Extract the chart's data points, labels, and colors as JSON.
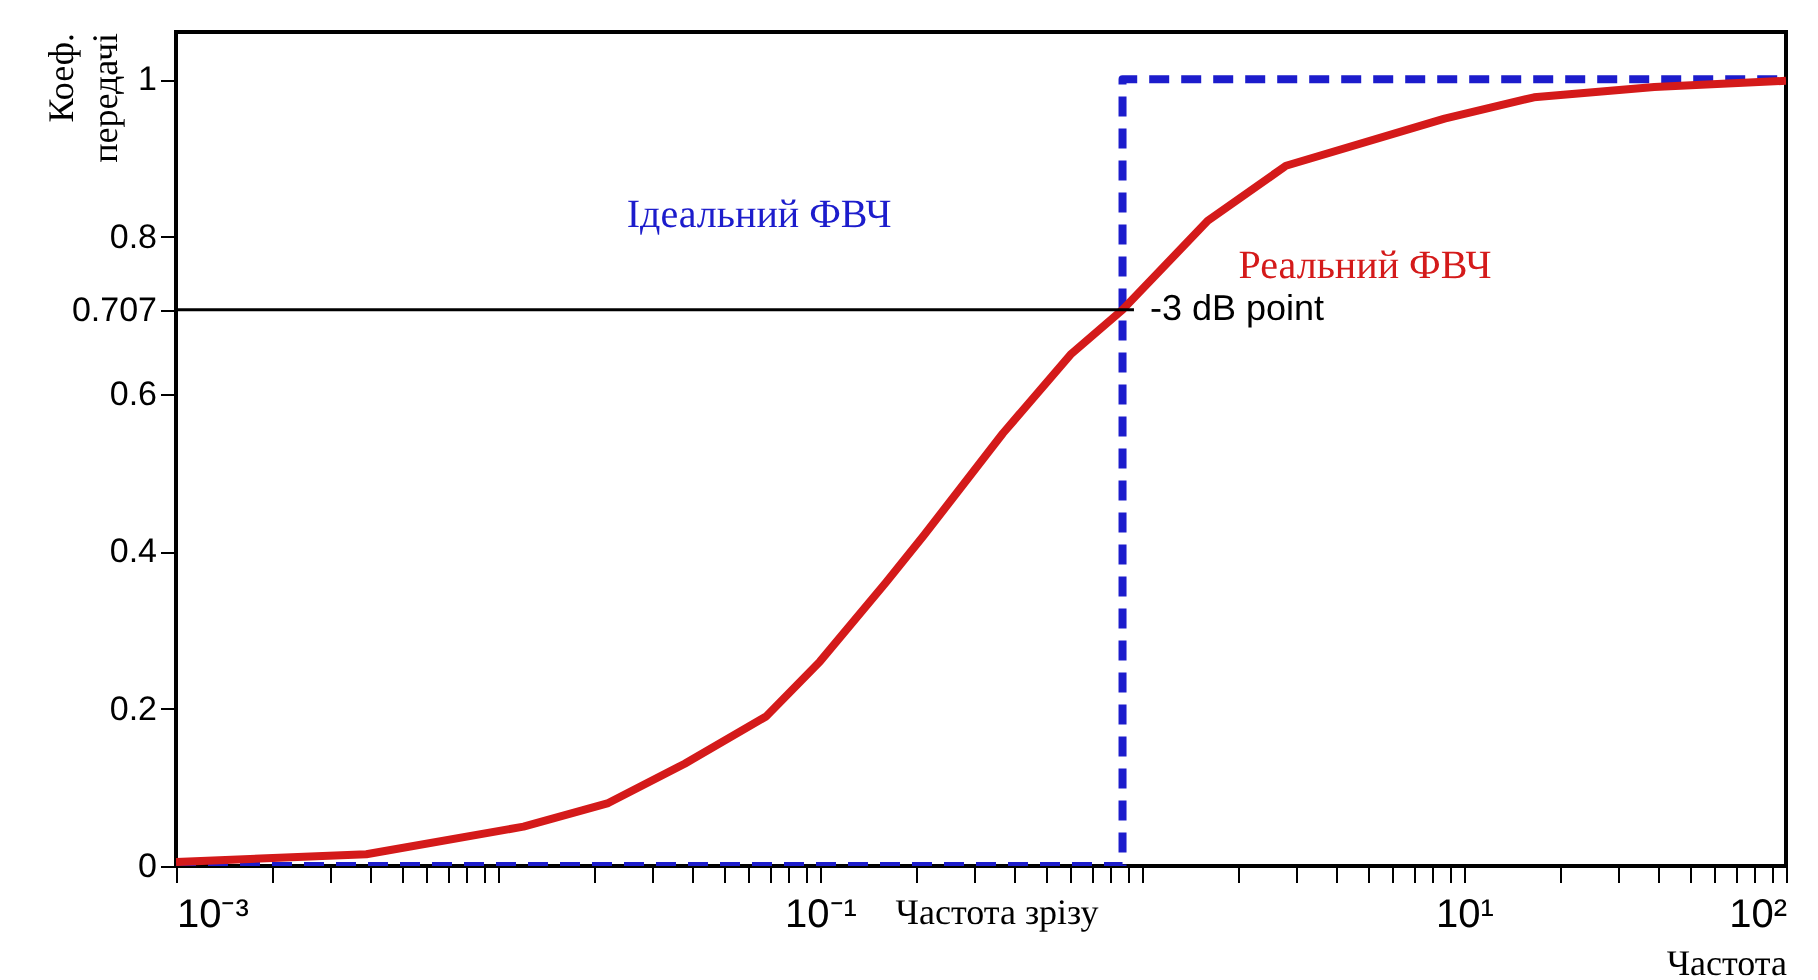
{
  "chart_data": {
    "type": "line",
    "xlabel": "Частота",
    "ylabel": "Коеф. передачі",
    "log": "x",
    "xlim": [
      0.001,
      100
    ],
    "ylim": [
      0,
      1.06
    ],
    "xticks": [
      {
        "value": 0.001,
        "label": "10⁻³"
      },
      {
        "value": 0.002,
        "label": null
      },
      {
        "value": 0.003,
        "label": null
      },
      {
        "value": 0.004,
        "label": null
      },
      {
        "value": 0.005,
        "label": null
      },
      {
        "value": 0.006,
        "label": null
      },
      {
        "value": 0.007,
        "label": null
      },
      {
        "value": 0.008,
        "label": null
      },
      {
        "value": 0.009,
        "label": null
      },
      {
        "value": 0.01,
        "label": null
      },
      {
        "value": 0.02,
        "label": null
      },
      {
        "value": 0.03,
        "label": null
      },
      {
        "value": 0.04,
        "label": null
      },
      {
        "value": 0.05,
        "label": null
      },
      {
        "value": 0.06,
        "label": null
      },
      {
        "value": 0.07,
        "label": null
      },
      {
        "value": 0.08,
        "label": null
      },
      {
        "value": 0.09,
        "label": null
      },
      {
        "value": 0.1,
        "label": "10⁻¹"
      },
      {
        "value": 0.2,
        "label": null
      },
      {
        "value": 0.3,
        "label": null
      },
      {
        "value": 0.4,
        "label": null
      },
      {
        "value": 0.5,
        "label": null
      },
      {
        "value": 0.6,
        "label": null
      },
      {
        "value": 0.7,
        "label": null
      },
      {
        "value": 0.8,
        "label": null
      },
      {
        "value": 0.9,
        "label": null
      },
      {
        "value": 1,
        "label": null
      },
      {
        "value": 2,
        "label": null
      },
      {
        "value": 3,
        "label": null
      },
      {
        "value": 4,
        "label": null
      },
      {
        "value": 5,
        "label": null
      },
      {
        "value": 6,
        "label": null
      },
      {
        "value": 7,
        "label": null
      },
      {
        "value": 8,
        "label": null
      },
      {
        "value": 9,
        "label": null
      },
      {
        "value": 10,
        "label": "10¹"
      },
      {
        "value": 20,
        "label": null
      },
      {
        "value": 30,
        "label": null
      },
      {
        "value": 40,
        "label": null
      },
      {
        "value": 50,
        "label": null
      },
      {
        "value": 60,
        "label": null
      },
      {
        "value": 70,
        "label": null
      },
      {
        "value": 80,
        "label": null
      },
      {
        "value": 90,
        "label": null
      },
      {
        "value": 100,
        "label": "10²"
      }
    ],
    "yticks": [
      0,
      0.2,
      0.4,
      0.6,
      0.707,
      0.8,
      1
    ],
    "grid": false,
    "series": [
      {
        "name": "Ідеальний ФВЧ",
        "color": "#1c1ccc",
        "line_style": "dashed",
        "x": [
          0.001,
          0.87,
          0.87,
          100
        ],
        "values": [
          0,
          0,
          1,
          1
        ]
      },
      {
        "name": "Реальний ФВЧ",
        "color": "#d41a1a",
        "line_style": "solid",
        "x": [
          0.001,
          0.0039,
          0.012,
          0.022,
          0.038,
          0.068,
          0.1,
          0.16,
          0.21,
          0.37,
          0.6,
          0.87,
          1.6,
          2.8,
          8.7,
          16.5,
          39,
          100
        ],
        "values": [
          0.005,
          0.015,
          0.05,
          0.08,
          0.13,
          0.19,
          0.26,
          0.36,
          0.42,
          0.55,
          0.65,
          0.707,
          0.82,
          0.89,
          0.95,
          0.977,
          0.99,
          0.998
        ]
      }
    ],
    "ref_lines": [
      {
        "axis": "y",
        "value": 0.707,
        "label": "-3 dB point",
        "color": "#000000"
      }
    ],
    "annotations": [
      "Частота зрізу"
    ]
  }
}
